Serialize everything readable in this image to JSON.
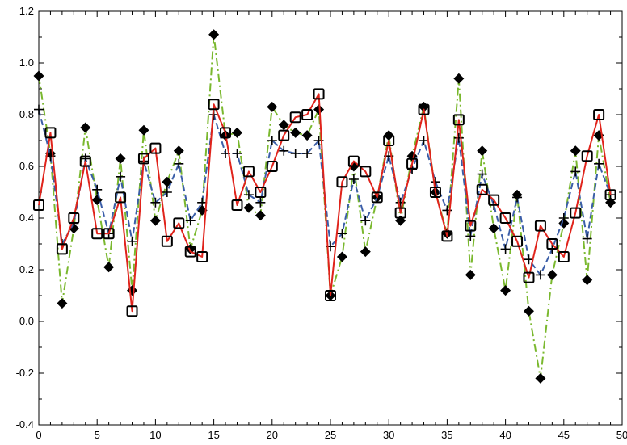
{
  "chart_data": {
    "type": "line",
    "title": "",
    "xlabel": "",
    "ylabel": "",
    "xlim": [
      0,
      50
    ],
    "ylim": [
      -0.4,
      1.2
    ],
    "x_ticks": [
      "0",
      "5",
      "10",
      "15",
      "20",
      "25",
      "30",
      "35",
      "40",
      "45",
      "50"
    ],
    "y_ticks": [
      "-0.4",
      "-0.2",
      "0.0",
      "0.2",
      "0.4",
      "0.6",
      "0.8",
      "1.0",
      "1.2"
    ],
    "x_tick_values": [
      0,
      5,
      10,
      15,
      20,
      25,
      30,
      35,
      40,
      45,
      50
    ],
    "y_tick_values": [
      -0.4,
      -0.2,
      0.0,
      0.2,
      0.4,
      0.6,
      0.8,
      1.0,
      1.2
    ],
    "grid": false,
    "x": [
      0,
      1,
      2,
      3,
      4,
      5,
      6,
      7,
      8,
      9,
      10,
      11,
      12,
      13,
      14,
      15,
      16,
      17,
      18,
      19,
      20,
      21,
      22,
      23,
      24,
      25,
      26,
      27,
      28,
      29,
      30,
      31,
      32,
      33,
      34,
      35,
      36,
      37,
      38,
      39,
      40,
      41,
      42,
      43,
      44,
      45,
      46,
      47,
      48,
      49
    ],
    "series": [
      {
        "color": "#7ab82e",
        "line_style": "dashdot",
        "marker": "diamond",
        "values": [
          0.95,
          0.65,
          0.07,
          0.36,
          0.75,
          0.47,
          0.21,
          0.63,
          0.12,
          0.74,
          0.39,
          0.54,
          0.66,
          0.28,
          0.43,
          1.11,
          0.72,
          0.73,
          0.44,
          0.41,
          0.83,
          0.76,
          0.73,
          0.72,
          0.82,
          0.1,
          0.25,
          0.6,
          0.27,
          0.48,
          0.72,
          0.39,
          0.64,
          0.83,
          0.5,
          0.34,
          0.94,
          0.18,
          0.66,
          0.36,
          0.12,
          0.49,
          0.04,
          -0.22,
          0.18,
          0.38,
          0.66,
          0.16,
          0.72,
          0.46
        ]
      },
      {
        "color": "#3b5ea8",
        "line_style": "dashed",
        "marker": "plus",
        "values": [
          0.82,
          0.64,
          0.3,
          0.38,
          0.63,
          0.51,
          0.34,
          0.56,
          0.31,
          0.62,
          0.46,
          0.5,
          0.61,
          0.39,
          0.46,
          0.8,
          0.65,
          0.65,
          0.49,
          0.46,
          0.7,
          0.66,
          0.65,
          0.65,
          0.7,
          0.29,
          0.34,
          0.55,
          0.39,
          0.48,
          0.64,
          0.46,
          0.59,
          0.7,
          0.54,
          0.43,
          0.71,
          0.33,
          0.57,
          0.45,
          0.28,
          0.48,
          0.24,
          0.18,
          0.28,
          0.4,
          0.58,
          0.32,
          0.61,
          0.49
        ]
      },
      {
        "color": "#e0231b",
        "line_style": "solid",
        "marker": "square",
        "values": [
          0.45,
          0.73,
          0.28,
          0.4,
          0.62,
          0.34,
          0.34,
          0.48,
          0.04,
          0.63,
          0.67,
          0.31,
          0.38,
          0.27,
          0.25,
          0.84,
          0.73,
          0.45,
          0.58,
          0.5,
          0.6,
          0.72,
          0.79,
          0.8,
          0.88,
          0.1,
          0.54,
          0.62,
          0.58,
          0.48,
          0.7,
          0.42,
          0.61,
          0.82,
          0.5,
          0.33,
          0.78,
          0.37,
          0.51,
          0.47,
          0.4,
          0.31,
          0.17,
          0.37,
          0.3,
          0.25,
          0.42,
          0.64,
          0.8,
          0.49
        ]
      }
    ]
  }
}
